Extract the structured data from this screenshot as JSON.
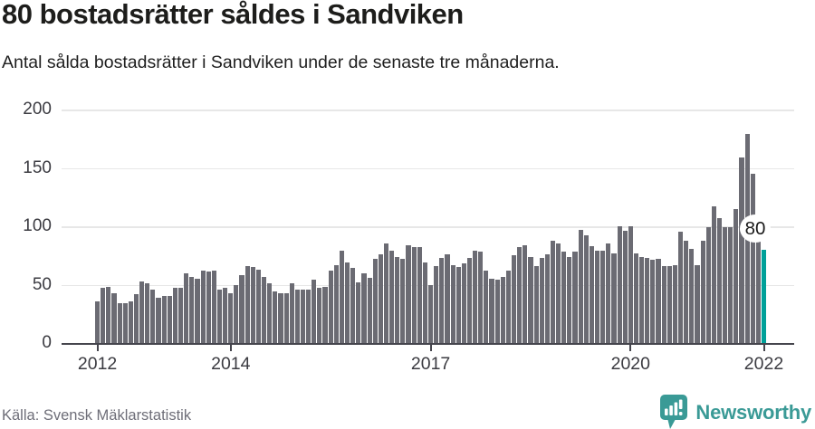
{
  "header": {
    "title": "80 bostadsrätter såldes i Sandviken",
    "subtitle": "Antal sålda bostadsrätter i Sandviken under de senaste tre månaderna."
  },
  "footer": {
    "source": "Källa: Svensk Mäklarstatistik",
    "brand_name": "Newsworthy"
  },
  "colors": {
    "bar": "#6b6b73",
    "highlight": "#00a099",
    "gridline": "#e7e7e7",
    "axis": "#45454d",
    "axis_text": "#3b3b41",
    "brand": "#3a9a96",
    "title_text": "#1d1d1b",
    "source_text": "#6e6e78"
  },
  "chart_data": {
    "type": "bar",
    "title": "80 bostadsrätter såldes i Sandviken",
    "subtitle": "Antal sålda bostadsrätter i Sandviken under de senaste tre månaderna.",
    "xlabel": "",
    "ylabel": "",
    "period": "monthly, rolling 3-month totals",
    "x_first_tick_year": 2012,
    "x_ticks": [
      2012,
      2014,
      2017,
      2020,
      2022
    ],
    "y_ticks": [
      0,
      50,
      100,
      150,
      200
    ],
    "ylim": [
      0,
      200
    ],
    "grid": true,
    "legend": "none",
    "highlight_last_bar": true,
    "annotation": {
      "label": "80",
      "target": "last-bar"
    },
    "values": [
      36,
      47,
      48,
      43,
      34,
      34,
      36,
      42,
      53,
      51,
      46,
      39,
      40,
      40,
      47,
      47,
      60,
      57,
      55,
      62,
      61,
      62,
      46,
      47,
      43,
      50,
      58,
      66,
      65,
      63,
      57,
      51,
      44,
      43,
      43,
      51,
      46,
      46,
      46,
      54,
      47,
      48,
      62,
      67,
      79,
      69,
      64,
      52,
      60,
      56,
      72,
      76,
      85,
      79,
      74,
      72,
      84,
      82,
      82,
      69,
      50,
      66,
      73,
      76,
      67,
      65,
      68,
      73,
      79,
      78,
      62,
      55,
      54,
      57,
      62,
      75,
      82,
      84,
      74,
      66,
      73,
      76,
      88,
      85,
      78,
      74,
      78,
      97,
      92,
      83,
      79,
      79,
      85,
      77,
      100,
      96,
      100,
      77,
      74,
      73,
      71,
      72,
      66,
      66,
      67,
      95,
      88,
      81,
      67,
      88,
      99,
      117,
      107,
      99,
      99,
      115,
      159,
      179,
      145,
      97,
      80
    ]
  }
}
